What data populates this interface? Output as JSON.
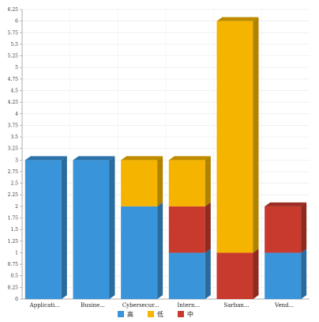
{
  "chart_data": {
    "type": "bar",
    "stacked": true,
    "three_d": true,
    "categories": [
      "Applicati...",
      "Busine...",
      "Cybersecur...",
      "Intern...",
      "Sarban...",
      "Vend..."
    ],
    "series": [
      {
        "name": "高",
        "color": "#3a94d9",
        "values": [
          3,
          3,
          2,
          1,
          0,
          1
        ]
      },
      {
        "name": "中",
        "color": "#c73a2d",
        "values": [
          0,
          0,
          0,
          1,
          1,
          1
        ]
      },
      {
        "name": "低",
        "color": "#f5b400",
        "values": [
          0,
          0,
          1,
          1,
          5,
          0
        ]
      }
    ],
    "legend_order": [
      "高",
      "低",
      "中"
    ],
    "ylim": [
      0,
      6.25
    ],
    "ytick_step": 0.25,
    "grid": true,
    "legend_position": "bottom-center",
    "title": "",
    "xlabel": "",
    "ylabel": ""
  }
}
